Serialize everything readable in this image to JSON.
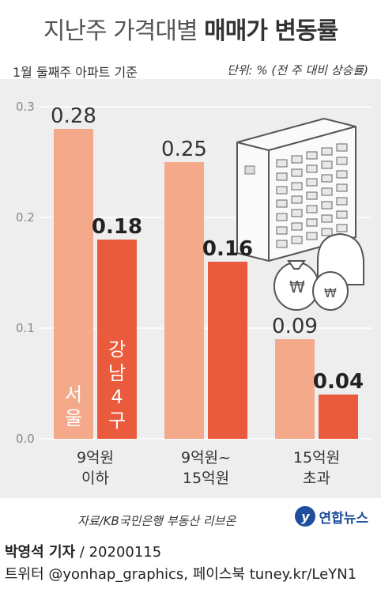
{
  "title": {
    "light": "지난주 가격대별",
    "bold": "매매가 변동률"
  },
  "subtitle": "1월 둘째주 아파트 기준",
  "unit": "단위: % (전 주 대비 상승률)",
  "colors": {
    "seoul": "#f4a98a",
    "gangnam": "#ea5a3d",
    "background": "#eeeeee"
  },
  "series_labels": {
    "seoul": "서울",
    "gangnam": "강남4구"
  },
  "chart_data": {
    "type": "bar",
    "categories": [
      {
        "line1": "9억원",
        "line2": "이하"
      },
      {
        "line1": "9억원~",
        "line2": "15억원"
      },
      {
        "line1": "15억원",
        "line2": "초과"
      }
    ],
    "series": [
      {
        "name": "서울",
        "values": [
          0.28,
          0.25,
          0.09
        ],
        "labels": [
          "0.28",
          "0.25",
          "0.09"
        ]
      },
      {
        "name": "강남4구",
        "values": [
          0.18,
          0.16,
          0.04
        ],
        "labels": [
          "0.18",
          "0.16",
          "0.04"
        ]
      }
    ],
    "ylim": [
      0,
      0.3
    ],
    "yticks": [
      "0.0",
      "0.1",
      "0.2",
      "0.3"
    ],
    "grid": true,
    "legend": "inside-bars"
  },
  "illustration_icon": "apartment-building-with-money-bags-icon",
  "source": "자료/KB국민은행 부동산 리브온",
  "logo": {
    "mark": "y",
    "text": "연합뉴스"
  },
  "byline": {
    "reporter": "박영석 기자",
    "date": "20200115"
  },
  "social": "트위터 @yonhap_graphics, 페이스북 tuney.kr/LeYN1"
}
